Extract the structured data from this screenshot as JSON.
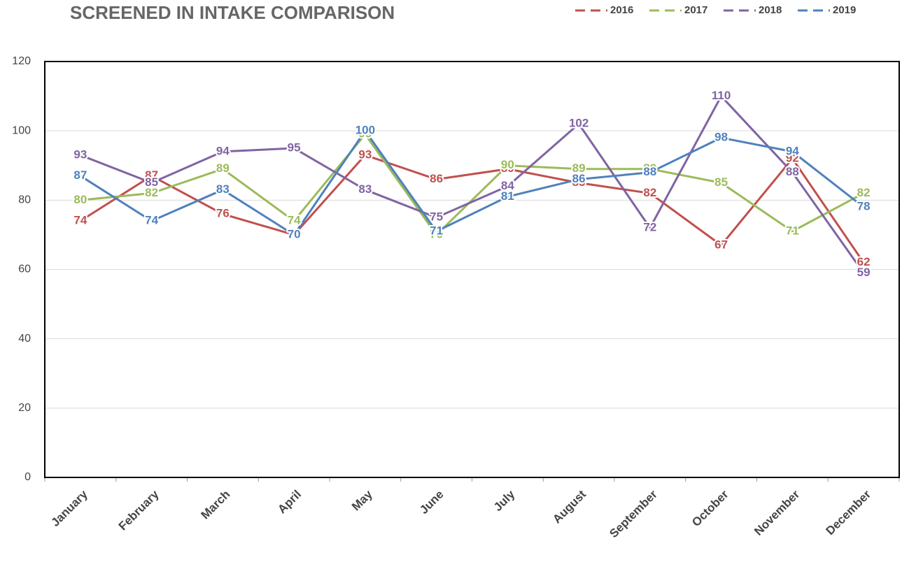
{
  "chart_data": {
    "type": "line",
    "title": "SCREENED IN INTAKE COMPARISON",
    "categories": [
      "January",
      "February",
      "March",
      "April",
      "May",
      "June",
      "July",
      "August",
      "September",
      "October",
      "November",
      "December"
    ],
    "series": [
      {
        "name": "2016",
        "color": "#c0504d",
        "values": [
          74,
          87,
          76,
          70,
          93,
          86,
          89,
          85,
          82,
          67,
          92,
          62
        ]
      },
      {
        "name": "2017",
        "color": "#9bbb59",
        "values": [
          80,
          82,
          89,
          74,
          99,
          70,
          90,
          89,
          89,
          85,
          71,
          82
        ]
      },
      {
        "name": "2018",
        "color": "#8064a2",
        "values": [
          93,
          85,
          94,
          95,
          83,
          75,
          84,
          102,
          72,
          110,
          88,
          59
        ]
      },
      {
        "name": "2019",
        "color": "#4f81bd",
        "values": [
          87,
          74,
          83,
          70,
          100,
          71,
          81,
          86,
          88,
          98,
          94,
          78
        ]
      }
    ],
    "ylim": [
      0,
      120
    ],
    "yticks": [
      0,
      20,
      40,
      60,
      80,
      100,
      120
    ],
    "grid": true,
    "legend": "top-right"
  }
}
